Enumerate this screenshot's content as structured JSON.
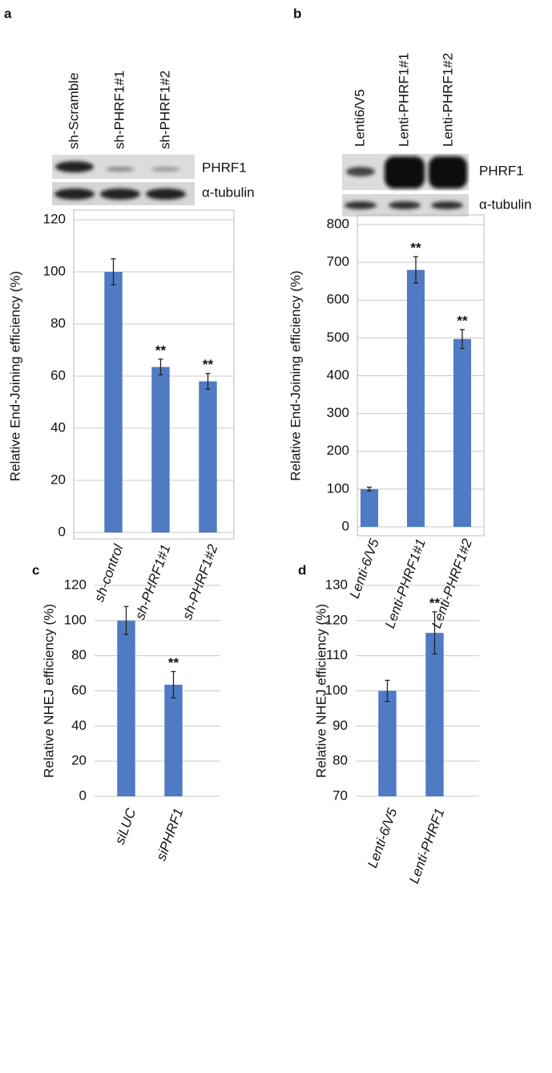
{
  "chart_data": [
    {
      "type": "bar",
      "panel": "a",
      "ylabel": "Relative End-Joining efficiency (%)",
      "categories": [
        "sh-control",
        "sh-PHRF1#1",
        "sh-PHRF1#2"
      ],
      "values": [
        100,
        63.5,
        58
      ],
      "errors": [
        5,
        3,
        3
      ],
      "significance": [
        null,
        "**",
        "**"
      ],
      "color": "#4f7bc4",
      "ylim": [
        0,
        120
      ],
      "yticks": [
        0,
        20,
        40,
        60,
        80,
        100,
        120
      ],
      "grid": true,
      "frame": true,
      "blot": {
        "lanes": [
          "sh-Scramble",
          "sh-PHRF1#1",
          "sh-PHRF1#2"
        ],
        "proteins": [
          "PHRF1",
          "α-tubulin"
        ]
      }
    },
    {
      "type": "bar",
      "panel": "b",
      "ylabel": "Relative End-Joining efficiency (%)",
      "categories": [
        "Lenti-6/V5",
        "Lenti-PHRF1#1",
        "Lenti-PHRF1#2"
      ],
      "values": [
        100,
        680,
        497
      ],
      "errors": [
        5,
        35,
        25
      ],
      "significance": [
        null,
        "**",
        "**"
      ],
      "color": "#4f7bc4",
      "ylim": [
        0,
        800
      ],
      "yticks": [
        0,
        100,
        200,
        300,
        400,
        500,
        600,
        700,
        800
      ],
      "grid": true,
      "frame": true,
      "blot": {
        "lanes": [
          "Lenti6/V5",
          "Lenti-PHRF1#1",
          "Lenti-PHRF1#2"
        ],
        "proteins": [
          "PHRF1",
          "α-tubulin"
        ]
      }
    },
    {
      "type": "bar",
      "panel": "c",
      "ylabel": "Relative NHEJ efficiency (%)",
      "categories": [
        "siLUC",
        "siPHRF1"
      ],
      "values": [
        100,
        63.5
      ],
      "errors": [
        8,
        7.5
      ],
      "significance": [
        null,
        "**"
      ],
      "color": "#4f7bc4",
      "ylim": [
        0,
        120
      ],
      "yticks": [
        0,
        20,
        40,
        60,
        80,
        100,
        120
      ],
      "grid": true,
      "frame": false
    },
    {
      "type": "bar",
      "panel": "d",
      "ylabel": "Relative NHEJ efficiency (%)",
      "categories": [
        "Lenti-6/V5",
        "Lenti-PHRF1"
      ],
      "values": [
        100,
        116.5
      ],
      "errors": [
        3,
        6
      ],
      "significance": [
        null,
        "**"
      ],
      "color": "#4f7bc4",
      "ylim": [
        70,
        130
      ],
      "yticks": [
        70,
        80,
        90,
        100,
        110,
        120,
        130
      ],
      "grid": true,
      "frame": false
    }
  ]
}
